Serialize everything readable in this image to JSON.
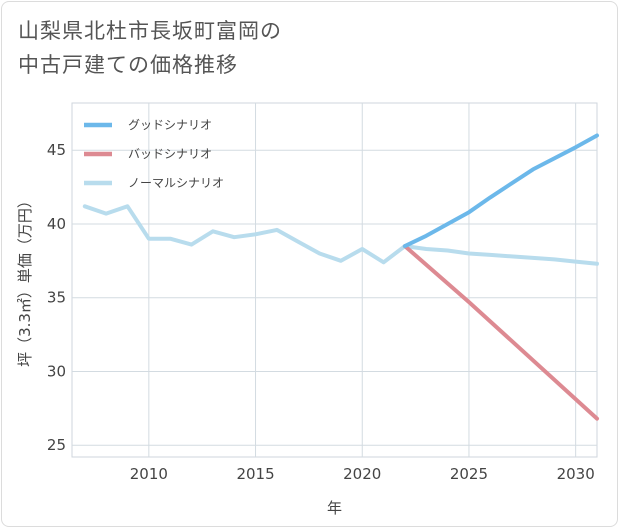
{
  "chart_data": {
    "type": "line",
    "title": [
      "山梨県北杜市長坂町富岡の",
      "中古戸建ての価格推移"
    ],
    "xlabel": "年",
    "ylabel": "坪（3.3㎡）単価（万円）",
    "xlim": [
      2006.4,
      2031
    ],
    "ylim": [
      24.2,
      48.2
    ],
    "xticks": [
      2010,
      2015,
      2020,
      2025,
      2030
    ],
    "yticks": [
      25,
      30,
      35,
      40,
      45
    ],
    "grid": true,
    "legend_position": "top-left",
    "series": [
      {
        "name": "グッドシナリオ",
        "color": "#6cb8ea",
        "points": [
          [
            2022,
            38.5
          ],
          [
            2023,
            39.2
          ],
          [
            2025,
            40.8
          ],
          [
            2026,
            41.8
          ],
          [
            2028,
            43.7
          ],
          [
            2030,
            45.2
          ],
          [
            2031,
            46.0
          ]
        ]
      },
      {
        "name": "バッドシナリオ",
        "color": "#dd8a92",
        "points": [
          [
            2022,
            38.5
          ],
          [
            2025,
            34.7
          ],
          [
            2031,
            26.8
          ]
        ]
      },
      {
        "name": "ノーマルシナリオ",
        "color": "#b8dced",
        "points": [
          [
            2007,
            41.2
          ],
          [
            2008,
            40.7
          ],
          [
            2009,
            41.2
          ],
          [
            2010,
            39.0
          ],
          [
            2011,
            39.0
          ],
          [
            2012,
            38.6
          ],
          [
            2013,
            39.5
          ],
          [
            2014,
            39.1
          ],
          [
            2015,
            39.3
          ],
          [
            2016,
            39.6
          ],
          [
            2017,
            38.8
          ],
          [
            2018,
            38.0
          ],
          [
            2019,
            37.5
          ],
          [
            2020,
            38.3
          ],
          [
            2021,
            37.4
          ],
          [
            2022,
            38.5
          ],
          [
            2023,
            38.3
          ],
          [
            2024,
            38.2
          ],
          [
            2025,
            38.0
          ],
          [
            2026,
            37.9
          ],
          [
            2027,
            37.8
          ],
          [
            2028,
            37.7
          ],
          [
            2029,
            37.6
          ],
          [
            2030,
            37.45
          ],
          [
            2031,
            37.3
          ]
        ]
      }
    ]
  }
}
